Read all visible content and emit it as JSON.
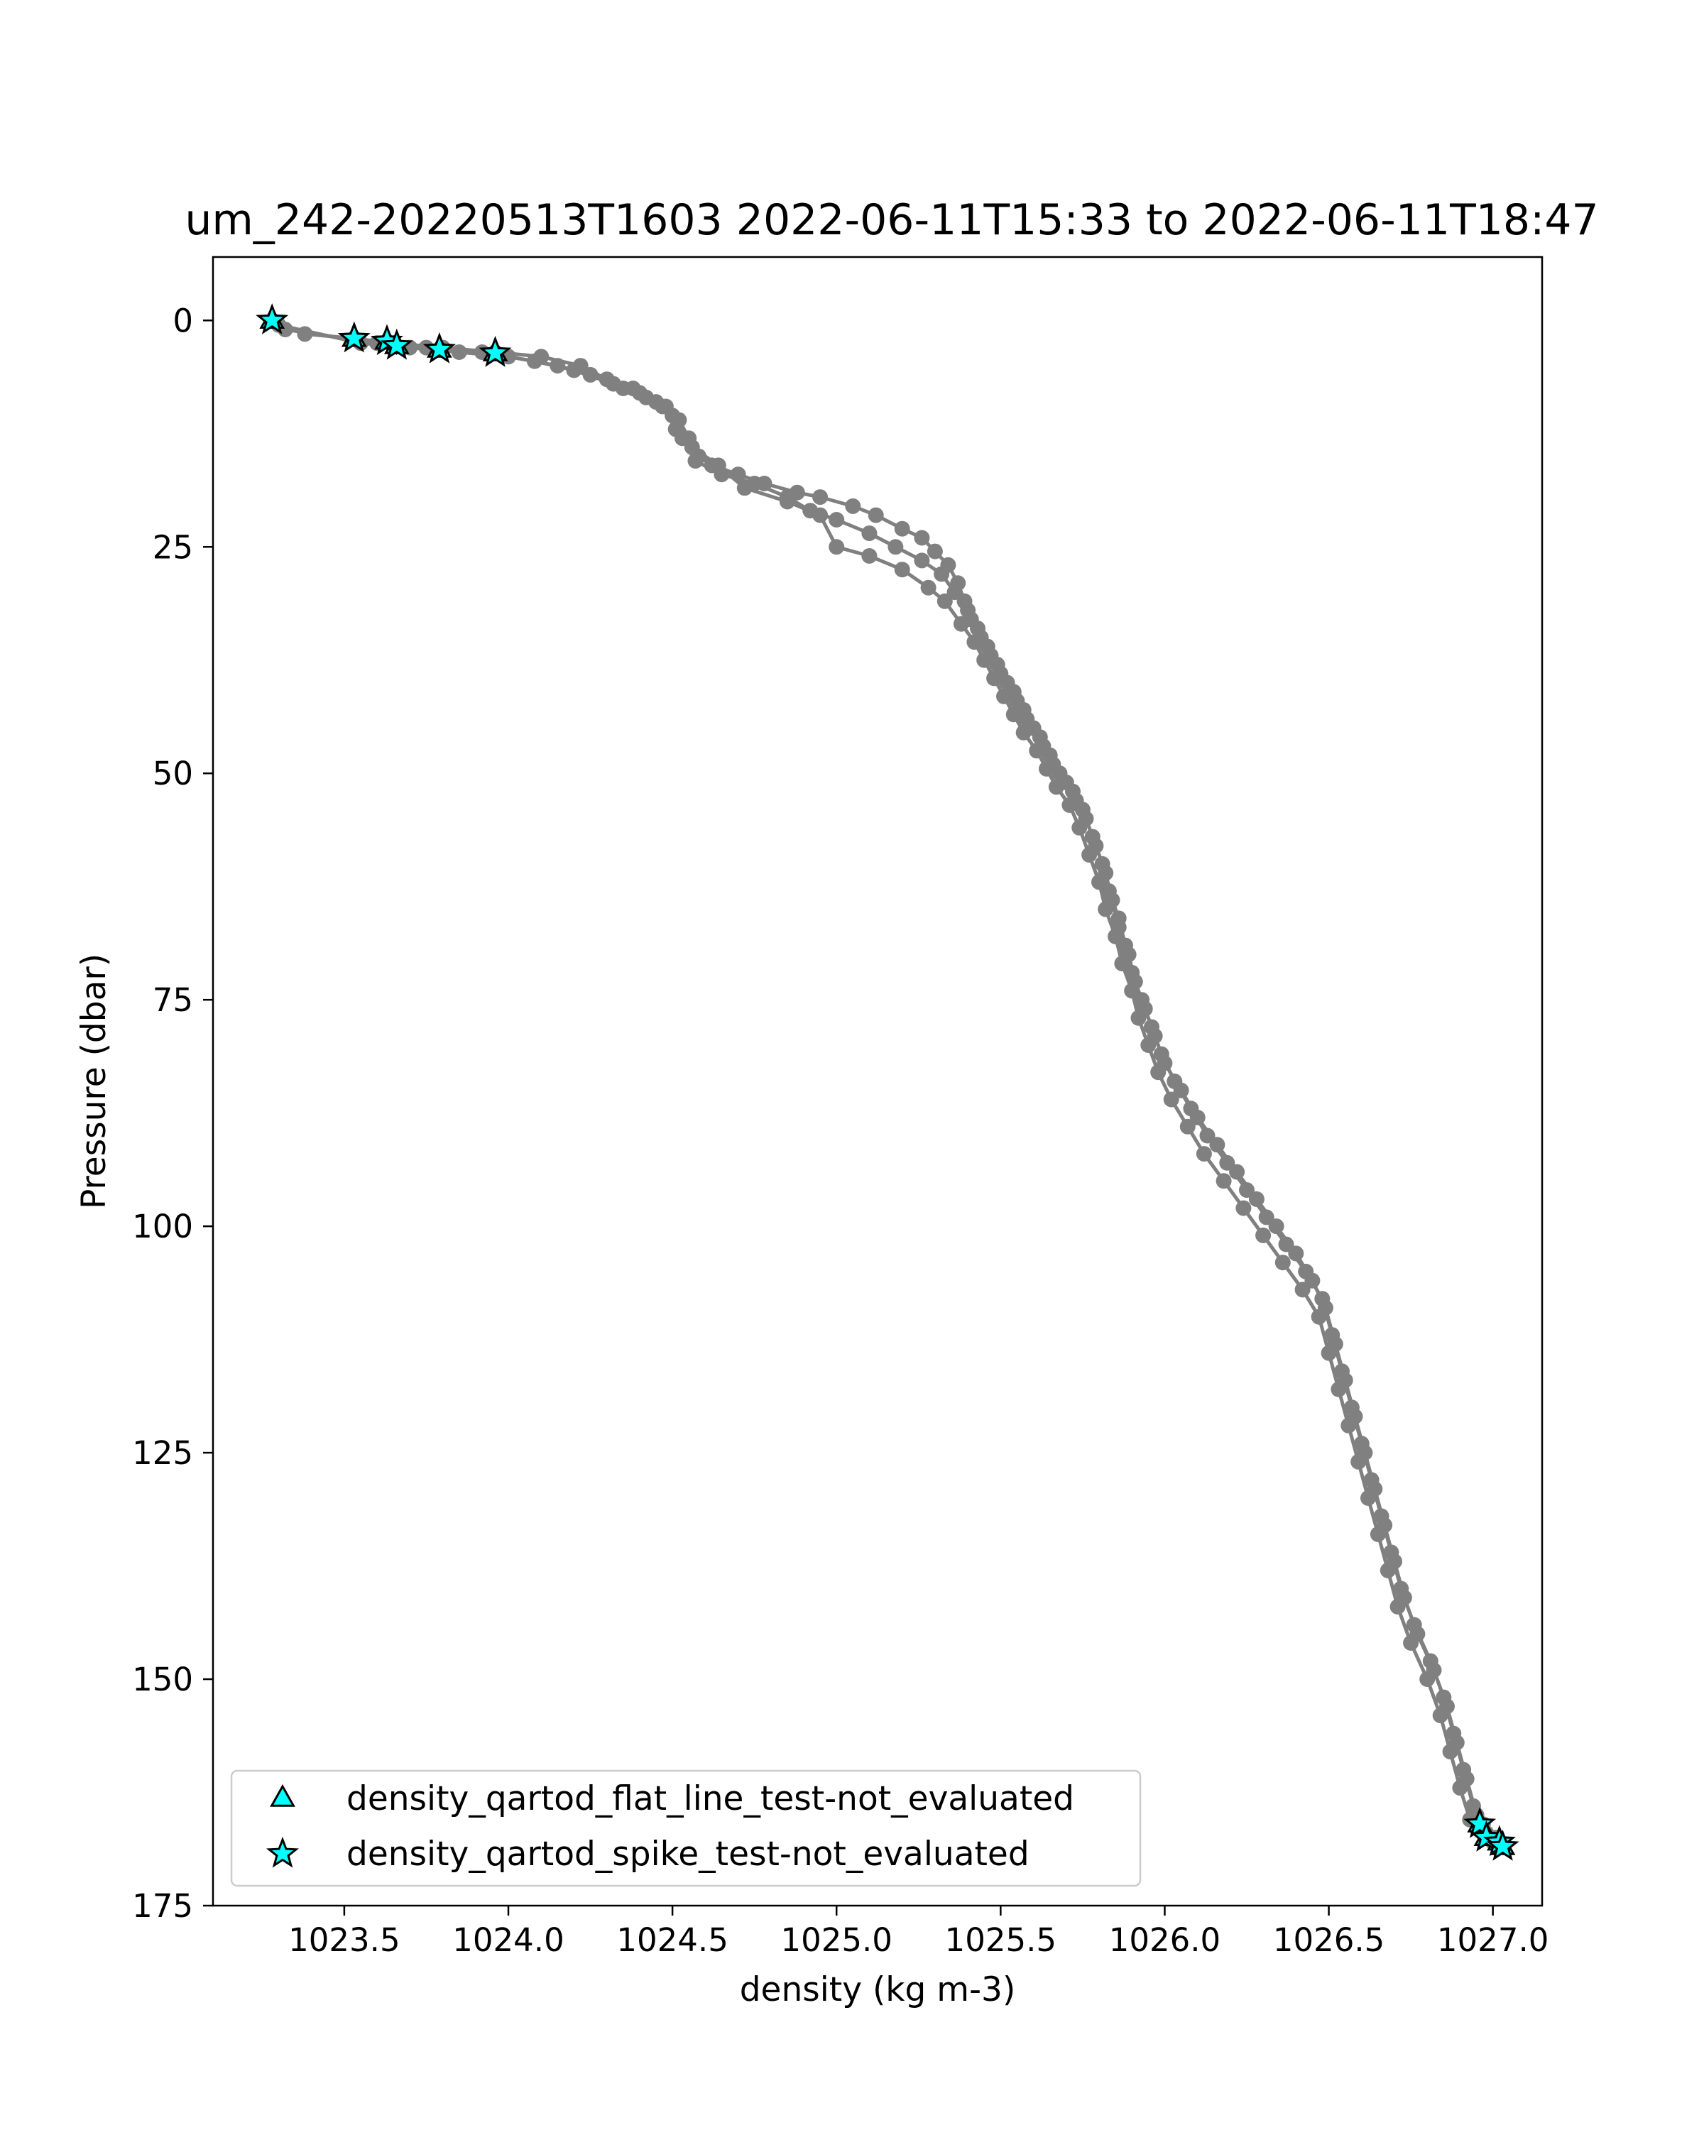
{
  "chart_data": {
    "type": "line",
    "title": "um_242-20220513T1603 2022-06-11T15:33 to 2022-06-11T18:47",
    "xlabel": "density (kg m-3)",
    "ylabel": "Pressure (dbar)",
    "xlim": [
      1023.1,
      1027.15
    ],
    "ylim": [
      175,
      -7
    ],
    "y_inverted": true,
    "grid": false,
    "xticks": [
      "1023.5",
      "1024.0",
      "1024.5",
      "1025.0",
      "1025.5",
      "1026.0",
      "1026.5",
      "1027.0"
    ],
    "xtick_values": [
      1023.5,
      1024.0,
      1024.5,
      1025.0,
      1025.5,
      1026.0,
      1026.5,
      1027.0
    ],
    "yticks": [
      "0",
      "25",
      "50",
      "75",
      "100",
      "125",
      "150",
      "175"
    ],
    "ytick_values": [
      0,
      25,
      50,
      75,
      100,
      125,
      150,
      175
    ],
    "series": [
      {
        "points": [
          [
            1023.28,
            0
          ],
          [
            1023.38,
            1.5
          ],
          [
            1023.53,
            2
          ],
          [
            1023.65,
            2.5
          ],
          [
            1023.8,
            3
          ],
          [
            1023.96,
            3.5
          ],
          [
            1024.1,
            4
          ],
          [
            1024.22,
            5
          ],
          [
            1024.3,
            6.5
          ],
          [
            1024.38,
            7.5
          ],
          [
            1024.42,
            8.5
          ],
          [
            1024.48,
            9.5
          ],
          [
            1024.52,
            11
          ],
          [
            1024.55,
            13
          ],
          [
            1024.58,
            15
          ],
          [
            1024.62,
            16
          ],
          [
            1024.7,
            17
          ],
          [
            1024.78,
            18
          ],
          [
            1024.88,
            19
          ],
          [
            1024.95,
            19.5
          ],
          [
            1025.05,
            20.5
          ],
          [
            1025.12,
            21.5
          ],
          [
            1025.2,
            23
          ],
          [
            1025.26,
            24
          ],
          [
            1025.3,
            25.5
          ],
          [
            1025.34,
            27
          ],
          [
            1025.37,
            29
          ],
          [
            1025.39,
            31
          ],
          [
            1025.41,
            33
          ],
          [
            1025.44,
            35
          ],
          [
            1025.47,
            37
          ],
          [
            1025.5,
            39
          ],
          [
            1025.54,
            41
          ],
          [
            1025.57,
            43
          ],
          [
            1025.6,
            45
          ],
          [
            1025.63,
            47
          ],
          [
            1025.66,
            49
          ],
          [
            1025.7,
            51
          ],
          [
            1025.73,
            53
          ],
          [
            1025.76,
            55
          ],
          [
            1025.79,
            58
          ],
          [
            1025.82,
            61
          ],
          [
            1025.84,
            64
          ],
          [
            1025.86,
            67
          ],
          [
            1025.89,
            70
          ],
          [
            1025.91,
            73
          ],
          [
            1025.94,
            76
          ],
          [
            1025.97,
            79
          ],
          [
            1026.0,
            82
          ],
          [
            1026.05,
            85
          ],
          [
            1026.1,
            88
          ],
          [
            1026.16,
            91
          ],
          [
            1026.22,
            94
          ],
          [
            1026.28,
            97
          ],
          [
            1026.34,
            100
          ],
          [
            1026.4,
            103
          ],
          [
            1026.45,
            106
          ],
          [
            1026.49,
            109
          ],
          [
            1026.52,
            113
          ],
          [
            1026.55,
            117
          ],
          [
            1026.58,
            121
          ],
          [
            1026.61,
            125
          ],
          [
            1026.64,
            129
          ],
          [
            1026.67,
            133
          ],
          [
            1026.7,
            137
          ],
          [
            1026.73,
            141
          ],
          [
            1026.77,
            145
          ],
          [
            1026.82,
            149
          ],
          [
            1026.86,
            153
          ],
          [
            1026.89,
            157
          ],
          [
            1026.92,
            161
          ],
          [
            1026.95,
            165
          ],
          [
            1026.98,
            167
          ],
          [
            1027.02,
            168.5
          ]
        ]
      },
      {
        "points": [
          [
            1023.3,
            0.5
          ],
          [
            1023.55,
            2.5
          ],
          [
            1023.7,
            3
          ],
          [
            1023.85,
            3.5
          ],
          [
            1024.0,
            4
          ],
          [
            1024.15,
            5
          ],
          [
            1024.25,
            6
          ],
          [
            1024.35,
            7.5
          ],
          [
            1024.45,
            9
          ],
          [
            1024.5,
            10.5
          ],
          [
            1024.53,
            13
          ],
          [
            1024.57,
            15.5
          ],
          [
            1024.65,
            17
          ],
          [
            1024.75,
            18
          ],
          [
            1024.85,
            19.5
          ],
          [
            1024.92,
            21
          ],
          [
            1025.0,
            22
          ],
          [
            1025.1,
            23.5
          ],
          [
            1025.18,
            25
          ],
          [
            1025.26,
            26.5
          ],
          [
            1025.32,
            28
          ],
          [
            1025.36,
            30
          ],
          [
            1025.4,
            32
          ],
          [
            1025.43,
            34
          ],
          [
            1025.46,
            36
          ],
          [
            1025.49,
            38
          ],
          [
            1025.52,
            40
          ],
          [
            1025.55,
            42
          ],
          [
            1025.58,
            44
          ],
          [
            1025.62,
            46
          ],
          [
            1025.65,
            48
          ],
          [
            1025.68,
            50
          ],
          [
            1025.72,
            52
          ],
          [
            1025.75,
            54
          ],
          [
            1025.78,
            57
          ],
          [
            1025.81,
            60
          ],
          [
            1025.83,
            63
          ],
          [
            1025.86,
            66
          ],
          [
            1025.88,
            69
          ],
          [
            1025.9,
            72
          ],
          [
            1025.93,
            75
          ],
          [
            1025.96,
            78
          ],
          [
            1025.99,
            81
          ],
          [
            1026.03,
            84
          ],
          [
            1026.08,
            87
          ],
          [
            1026.13,
            90
          ],
          [
            1026.19,
            93
          ],
          [
            1026.25,
            96
          ],
          [
            1026.31,
            99
          ],
          [
            1026.37,
            102
          ],
          [
            1026.43,
            105
          ],
          [
            1026.48,
            108
          ],
          [
            1026.51,
            112
          ],
          [
            1026.54,
            116
          ],
          [
            1026.57,
            120
          ],
          [
            1026.6,
            124
          ],
          [
            1026.63,
            128
          ],
          [
            1026.66,
            132
          ],
          [
            1026.69,
            136
          ],
          [
            1026.72,
            140
          ],
          [
            1026.76,
            144
          ],
          [
            1026.81,
            148
          ],
          [
            1026.85,
            152
          ],
          [
            1026.88,
            156
          ],
          [
            1026.91,
            160
          ],
          [
            1026.94,
            164
          ],
          [
            1026.97,
            166
          ],
          [
            1027.01,
            167.5
          ]
        ]
      },
      {
        "points": [
          [
            1023.32,
            1
          ],
          [
            1023.6,
            2.5
          ],
          [
            1023.75,
            3
          ],
          [
            1023.92,
            3.5
          ],
          [
            1024.08,
            4.5
          ],
          [
            1024.2,
            5.5
          ],
          [
            1024.32,
            7
          ],
          [
            1024.4,
            8
          ],
          [
            1024.47,
            9.5
          ],
          [
            1024.51,
            12
          ],
          [
            1024.56,
            14
          ],
          [
            1024.64,
            16
          ],
          [
            1024.72,
            18.5
          ],
          [
            1024.85,
            20
          ],
          [
            1024.95,
            21.5
          ],
          [
            1025.0,
            25
          ],
          [
            1025.1,
            26
          ],
          [
            1025.2,
            27.5
          ],
          [
            1025.28,
            29.5
          ],
          [
            1025.33,
            31
          ],
          [
            1025.38,
            33.5
          ],
          [
            1025.42,
            35.5
          ],
          [
            1025.45,
            37.5
          ],
          [
            1025.48,
            39.5
          ],
          [
            1025.51,
            41.5
          ],
          [
            1025.54,
            43.5
          ],
          [
            1025.57,
            45.5
          ],
          [
            1025.61,
            47.5
          ],
          [
            1025.64,
            49.5
          ],
          [
            1025.67,
            51.5
          ],
          [
            1025.71,
            53.5
          ],
          [
            1025.74,
            56
          ],
          [
            1025.77,
            59
          ],
          [
            1025.8,
            62
          ],
          [
            1025.82,
            65
          ],
          [
            1025.85,
            68
          ],
          [
            1025.87,
            71
          ],
          [
            1025.9,
            74
          ],
          [
            1025.92,
            77
          ],
          [
            1025.95,
            80
          ],
          [
            1025.98,
            83
          ],
          [
            1026.02,
            86
          ],
          [
            1026.07,
            89
          ],
          [
            1026.12,
            92
          ],
          [
            1026.18,
            95
          ],
          [
            1026.24,
            98
          ],
          [
            1026.3,
            101
          ],
          [
            1026.36,
            104
          ],
          [
            1026.42,
            107
          ],
          [
            1026.47,
            110
          ],
          [
            1026.5,
            114
          ],
          [
            1026.53,
            118
          ],
          [
            1026.56,
            122
          ],
          [
            1026.59,
            126
          ],
          [
            1026.62,
            130
          ],
          [
            1026.65,
            134
          ],
          [
            1026.68,
            138
          ],
          [
            1026.71,
            142
          ],
          [
            1026.75,
            146
          ],
          [
            1026.8,
            150
          ],
          [
            1026.84,
            154
          ],
          [
            1026.87,
            158
          ],
          [
            1026.9,
            162
          ],
          [
            1026.93,
            165.5
          ],
          [
            1026.97,
            167
          ],
          [
            1027.0,
            168
          ]
        ]
      }
    ],
    "flat_line_points": [
      [
        1023.28,
        0
      ],
      [
        1023.53,
        2
      ],
      [
        1023.63,
        2.3
      ],
      [
        1023.66,
        2.8
      ],
      [
        1023.79,
        3.2
      ],
      [
        1023.96,
        3.6
      ],
      [
        1026.96,
        166
      ],
      [
        1026.98,
        167.5
      ],
      [
        1027.02,
        168
      ],
      [
        1027.03,
        168.5
      ]
    ],
    "spike_points": [
      [
        1023.28,
        0
      ],
      [
        1023.53,
        2
      ],
      [
        1023.63,
        2.3
      ],
      [
        1023.66,
        2.8
      ],
      [
        1023.79,
        3.2
      ],
      [
        1023.96,
        3.6
      ],
      [
        1026.96,
        166
      ],
      [
        1026.98,
        167.5
      ],
      [
        1027.02,
        168
      ],
      [
        1027.03,
        168.5
      ]
    ],
    "legend": {
      "placement": "lower-left",
      "entries": [
        {
          "label": "density_qartod_flat_line_test-not_evaluated",
          "marker": "triangle"
        },
        {
          "label": "density_qartod_spike_test-not_evaluated",
          "marker": "star"
        }
      ]
    },
    "colors": {
      "line": "#808080",
      "marker_fill": "#00ffff",
      "marker_edge": "#000000"
    }
  }
}
